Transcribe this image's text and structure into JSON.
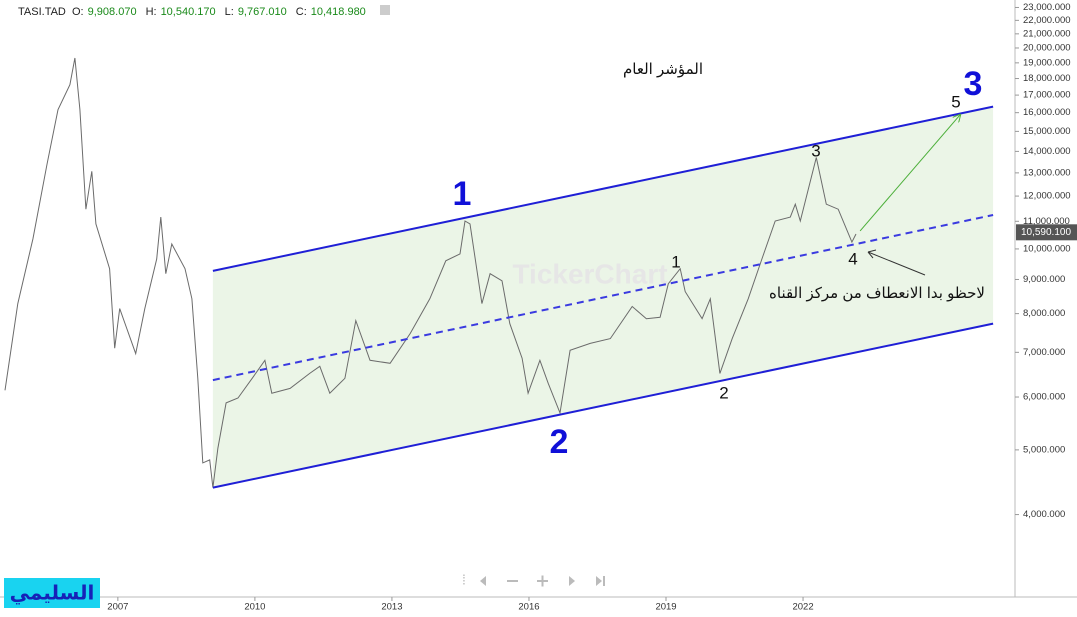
{
  "chart_data": {
    "type": "line",
    "header": {
      "symbol": "TASI.TAD",
      "fields": [
        {
          "label": "O:",
          "value": "9,908.070"
        },
        {
          "label": "H:",
          "value": "10,540.170"
        },
        {
          "label": "L:",
          "value": "9,767.010"
        },
        {
          "label": "C:",
          "value": "10,418.980"
        }
      ]
    },
    "title": "المؤشر العام",
    "watermark": "TickerChart",
    "author": "السليمي",
    "log_scale": true,
    "grid": false,
    "xlim": [
      2004.42,
      2026.64
    ],
    "xticks": [
      2007,
      2010,
      2013,
      2016,
      2019,
      2022
    ],
    "ylim": [
      3010,
      23600
    ],
    "yticks": [
      {
        "value": 4000,
        "label": "4,000.000"
      },
      {
        "value": 5000,
        "label": "5,000.000"
      },
      {
        "value": 6000,
        "label": "6,000.000"
      },
      {
        "value": 7000,
        "label": "7,000.000"
      },
      {
        "value": 8000,
        "label": "8,000.000"
      },
      {
        "value": 9000,
        "label": "9,000.000"
      },
      {
        "value": 10000,
        "label": "10,000.000"
      },
      {
        "value": 11000,
        "label": "11,000.000"
      },
      {
        "value": 12000,
        "label": "12,000.000"
      },
      {
        "value": 13000,
        "label": "13,000.000"
      },
      {
        "value": 14000,
        "label": "14,000.000"
      },
      {
        "value": 15000,
        "label": "15,000.000"
      },
      {
        "value": 16000,
        "label": "16,000.000"
      },
      {
        "value": 17000,
        "label": "17,000.000"
      },
      {
        "value": 18000,
        "label": "18,000.000"
      },
      {
        "value": 19000,
        "label": "19,000.000"
      },
      {
        "value": 20000,
        "label": "20,000.000"
      },
      {
        "value": 21000,
        "label": "21,000.000"
      },
      {
        "value": 22000,
        "label": "22,000.000"
      },
      {
        "value": 23000,
        "label": "23,000.000"
      }
    ],
    "last_price": {
      "value": 10590.1,
      "label": "10,590.100"
    },
    "series": [
      {
        "color": "#6b6b6b",
        "style": "solid",
        "width": 1,
        "x": [
          2004.53,
          2004.81,
          2005.14,
          2005.45,
          2005.69,
          2005.95,
          2006.06,
          2006.17,
          2006.3,
          2006.43,
          2006.52,
          2006.82,
          2006.93,
          2007.04,
          2007.39,
          2007.59,
          2007.85,
          2007.94,
          2008.05,
          2008.18,
          2008.47,
          2008.62,
          2008.75,
          2008.86,
          2009.01,
          2009.08,
          2009.19,
          2009.37,
          2009.63,
          2009.94,
          2010.22,
          2010.37,
          2010.77,
          2011.2,
          2011.42,
          2011.64,
          2011.97,
          2012.21,
          2012.52,
          2012.96,
          2013.4,
          2013.83,
          2014.18,
          2014.49,
          2014.6,
          2014.71,
          2014.97,
          2015.15,
          2015.41,
          2015.58,
          2015.85,
          2015.98,
          2016.24,
          2016.42,
          2016.68,
          2016.9,
          2017.34,
          2017.78,
          2018.26,
          2018.57,
          2018.87,
          2019.05,
          2019.31,
          2019.42,
          2019.79,
          2019.97,
          2020.18,
          2020.45,
          2020.8,
          2021.1,
          2021.39,
          2021.72,
          2021.83,
          2021.94,
          2022.29,
          2022.51,
          2022.77,
          2023.07,
          2023.16
        ],
        "values": [
          6140,
          8280,
          10350,
          13390,
          16170,
          17620,
          19320,
          16170,
          11470,
          13070,
          10900,
          9340,
          7100,
          8140,
          6970,
          8140,
          9660,
          11160,
          9180,
          10170,
          9340,
          8420,
          6400,
          4780,
          4830,
          4390,
          5030,
          5880,
          5980,
          6400,
          6810,
          6080,
          6180,
          6510,
          6670,
          6080,
          6400,
          7810,
          6810,
          6740,
          7470,
          8420,
          9600,
          9830,
          11010,
          10900,
          8280,
          9180,
          8960,
          7730,
          6860,
          6080,
          6810,
          6290,
          5680,
          7050,
          7220,
          7340,
          8200,
          7860,
          7900,
          8870,
          9340,
          8630,
          7860,
          8420,
          6510,
          7340,
          8420,
          9660,
          11010,
          11160,
          11670,
          11010,
          13710,
          11670,
          11470,
          10240,
          10530
        ]
      },
      {
        "color": "#1f1fd6",
        "style": "solid",
        "width": 2,
        "x": [
          2009.08,
          2026.16
        ],
        "values": [
          9270,
          16340
        ]
      },
      {
        "color": "#3a3ae0",
        "style": "dashed",
        "width": 2,
        "x": [
          2009.08,
          2026.16
        ],
        "values": [
          6360,
          11240
        ]
      },
      {
        "color": "#1f1fd6",
        "style": "solid",
        "width": 2,
        "x": [
          2009.08,
          2026.16
        ],
        "values": [
          4390,
          7730
        ]
      },
      {
        "color": "#4caf3a",
        "style": "arrow",
        "width": 1,
        "x": [
          2023.25,
          2025.44
        ],
        "values": [
          10640,
          15890
        ]
      }
    ],
    "annotations": [
      {
        "text": "1",
        "style": "wave"
      },
      {
        "text": "2",
        "style": "wave"
      },
      {
        "text": "3",
        "style": "wave"
      },
      {
        "text": "1",
        "style": "minor"
      },
      {
        "text": "2",
        "style": "minor"
      },
      {
        "text": "3",
        "style": "minor"
      },
      {
        "text": "4",
        "style": "minor"
      },
      {
        "text": "5",
        "style": "minor"
      },
      {
        "text": "لاحظو بدا الانعطاف من مركز القناه",
        "style": "note"
      }
    ]
  }
}
